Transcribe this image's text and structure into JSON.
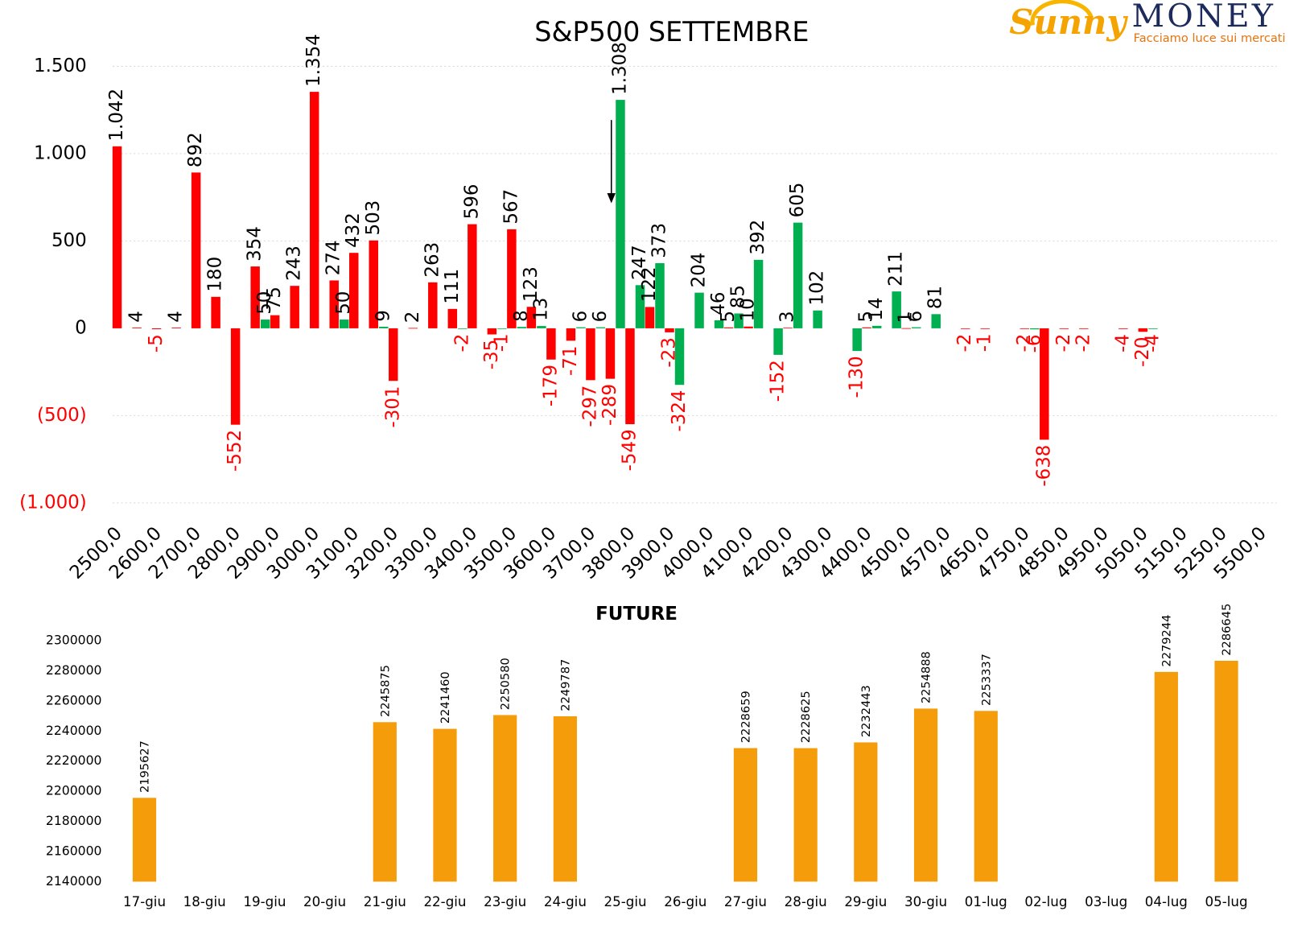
{
  "logo": {
    "brand": "Sunny",
    "name": "MONEY",
    "tagline": "Facciamo luce sui mercati"
  },
  "chart_data": [
    {
      "type": "bar",
      "title": "S&P500 SETTEMBRE",
      "categories": [
        "2500,0",
        null,
        "2600,0",
        null,
        "2700,0",
        null,
        "2800,0",
        null,
        "2900,0",
        null,
        "3000,0",
        null,
        "3100,0",
        null,
        "3200,0",
        null,
        "3300,0",
        null,
        "3400,0",
        null,
        "3500,0",
        null,
        "3600,0",
        null,
        "3700,0",
        null,
        "3800,0",
        null,
        "3900,0",
        null,
        "4000,0",
        null,
        "4100,0",
        null,
        "4200,0",
        null,
        "4300,0",
        null,
        "4400,0",
        null,
        "4500,0",
        null,
        "4570,0",
        null,
        "4650,0",
        null,
        "4750,0",
        null,
        "4850,0",
        null,
        "4950,0",
        null,
        "5050,0",
        null,
        "5150,0",
        null,
        "5250,0",
        null,
        "5500,0"
      ],
      "series": [
        {
          "color": "#ff0000",
          "values": [
            1042,
            4,
            -5,
            4,
            892,
            180,
            -552,
            354,
            75,
            243,
            1354,
            274,
            432,
            503,
            -301,
            2,
            263,
            111,
            596,
            -35,
            567,
            123,
            -179,
            -71,
            -297,
            -289,
            -549,
            122,
            -23,
            null,
            null,
            5,
            10,
            null,
            3,
            null,
            null,
            null,
            5,
            null,
            1,
            null,
            null,
            -2,
            -1,
            null,
            -2,
            -638,
            -2,
            -2,
            null,
            -4,
            -20,
            null,
            null,
            null,
            null,
            null,
            null
          ],
          "value_labels": [
            "1.042",
            "4",
            "-5",
            "4",
            "892",
            "180",
            "-552",
            "354",
            "75",
            "243",
            "1.354",
            "274",
            "432",
            "503",
            "-301",
            "2",
            "263",
            "111",
            "596",
            "-35",
            "567",
            "123",
            "-179",
            "-71",
            "-297",
            "-289",
            "-549",
            "122",
            "-23",
            null,
            null,
            "5",
            "10",
            null,
            "3",
            null,
            null,
            null,
            "5",
            null,
            "1",
            null,
            null,
            "-2",
            "-1",
            null,
            "-2",
            "-638",
            "-2",
            "-2",
            null,
            "-4",
            "-20",
            null,
            null,
            null,
            null,
            null,
            null
          ]
        },
        {
          "color": "#00b050",
          "values": [
            null,
            null,
            null,
            null,
            null,
            null,
            null,
            50,
            null,
            null,
            null,
            50,
            null,
            9,
            null,
            null,
            null,
            -2,
            null,
            -1,
            8,
            13,
            null,
            6,
            6,
            1308,
            247,
            373,
            -324,
            204,
            46,
            85,
            392,
            -152,
            605,
            102,
            null,
            -130,
            14,
            211,
            6,
            81,
            null,
            null,
            null,
            null,
            -6,
            null,
            null,
            null,
            null,
            null,
            -4,
            null,
            null,
            null,
            null,
            null,
            null
          ],
          "value_labels": [
            null,
            null,
            null,
            null,
            null,
            null,
            null,
            "50",
            null,
            null,
            null,
            "50",
            null,
            "9",
            null,
            null,
            null,
            "-2",
            null,
            "-1",
            "8",
            "13",
            null,
            "6",
            "6",
            "1.308",
            "247",
            "373",
            "-324",
            "204",
            "46",
            "85",
            "392",
            "-152",
            "605",
            "102",
            null,
            "-130",
            "14",
            "211",
            "6",
            "81",
            null,
            null,
            null,
            null,
            "-6",
            null,
            null,
            null,
            null,
            null,
            "-4",
            null,
            null,
            null,
            null,
            null,
            null
          ]
        }
      ],
      "ylim": [
        -1000,
        1500
      ],
      "yticks": [
        {
          "value": -1000,
          "label": "(1.000)"
        },
        {
          "value": -500,
          "label": "(500)"
        },
        0,
        500,
        {
          "value": 1000,
          "label": "1.000"
        },
        {
          "value": 1500,
          "label": "1.500"
        }
      ],
      "negative_color": "#ff0000",
      "grid": true
    },
    {
      "type": "bar",
      "title": "FUTURE",
      "categories": [
        "17-giu",
        "18-giu",
        "19-giu",
        "20-giu",
        "21-giu",
        "22-giu",
        "23-giu",
        "24-giu",
        "25-giu",
        "26-giu",
        "27-giu",
        "28-giu",
        "29-giu",
        "30-giu",
        "01-lug",
        "02-lug",
        "03-lug",
        "04-lug",
        "05-lug"
      ],
      "values": [
        2195627,
        null,
        null,
        null,
        2245875,
        2241460,
        2250580,
        2249787,
        null,
        null,
        2228659,
        2228625,
        2232443,
        2254888,
        2253337,
        null,
        null,
        2279244,
        2286645
      ],
      "color": "#f59c0a",
      "ylim": [
        2140000,
        2300000
      ],
      "yticks": [
        2140000,
        2160000,
        2180000,
        2200000,
        2220000,
        2240000,
        2260000,
        2280000,
        2300000
      ],
      "grid": false
    }
  ]
}
